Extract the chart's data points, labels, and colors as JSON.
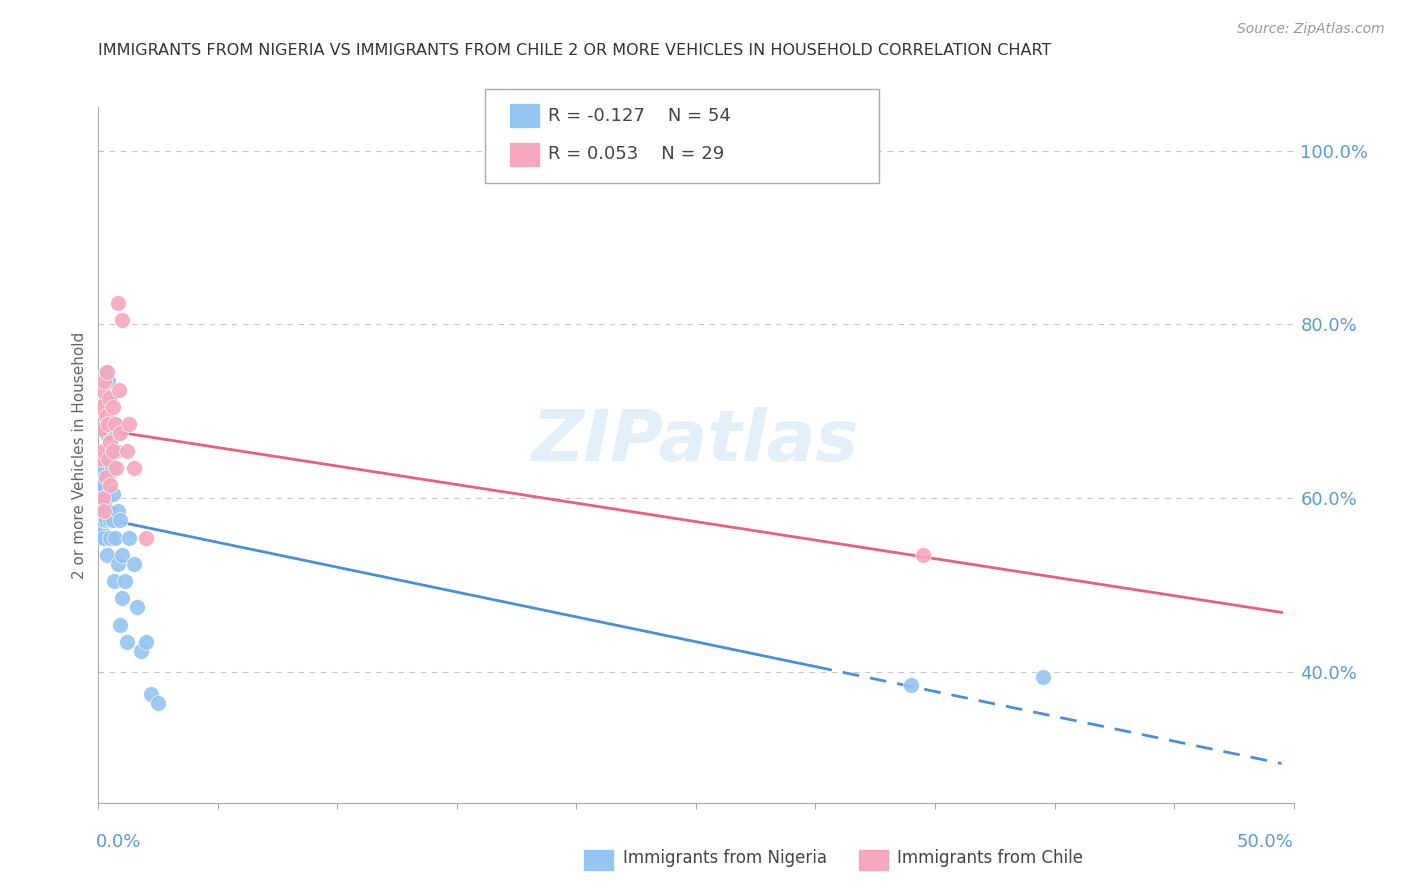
{
  "title": "IMMIGRANTS FROM NIGERIA VS IMMIGRANTS FROM CHILE 2 OR MORE VEHICLES IN HOUSEHOLD CORRELATION CHART",
  "source": "Source: ZipAtlas.com",
  "ylabel": "2 or more Vehicles in Household",
  "right_yticks": [
    0.4,
    0.6,
    0.8,
    1.0
  ],
  "right_yticklabels": [
    "40.0%",
    "60.0%",
    "80.0%",
    "100.0%"
  ],
  "nigeria_R": -0.127,
  "nigeria_N": 54,
  "chile_R": 0.053,
  "chile_N": 29,
  "nigeria_color": "#94c4f0",
  "chile_color": "#f5a8bc",
  "nigeria_line_color": "#4a90d9",
  "chile_line_color": "#e8607a",
  "watermark": "ZIPatlas",
  "background_color": "#ffffff",
  "grid_color": "#c8c8c8",
  "xmin": 0.0,
  "xmax": 0.5,
  "ymin": 0.25,
  "ymax": 1.05,
  "nigeria_x": [
    0.0008,
    0.0009,
    0.001,
    0.001,
    0.0012,
    0.0013,
    0.0014,
    0.0015,
    0.0015,
    0.0016,
    0.002,
    0.002,
    0.002,
    0.0022,
    0.0022,
    0.0025,
    0.0025,
    0.003,
    0.003,
    0.003,
    0.0032,
    0.0033,
    0.0035,
    0.004,
    0.004,
    0.004,
    0.0042,
    0.0045,
    0.005,
    0.005,
    0.0055,
    0.006,
    0.006,
    0.0065,
    0.007,
    0.007,
    0.0075,
    0.008,
    0.008,
    0.009,
    0.009,
    0.01,
    0.01,
    0.011,
    0.012,
    0.013,
    0.015,
    0.016,
    0.018,
    0.02,
    0.022,
    0.025,
    0.34,
    0.395
  ],
  "nigeria_y": [
    0.595,
    0.615,
    0.555,
    0.625,
    0.58,
    0.61,
    0.57,
    0.56,
    0.63,
    0.645,
    0.595,
    0.615,
    0.575,
    0.6,
    0.635,
    0.555,
    0.585,
    0.745,
    0.715,
    0.675,
    0.6,
    0.575,
    0.535,
    0.645,
    0.625,
    0.585,
    0.735,
    0.645,
    0.575,
    0.555,
    0.635,
    0.605,
    0.575,
    0.505,
    0.685,
    0.555,
    0.655,
    0.585,
    0.525,
    0.455,
    0.575,
    0.535,
    0.485,
    0.505,
    0.435,
    0.555,
    0.525,
    0.475,
    0.425,
    0.435,
    0.375,
    0.365,
    0.385,
    0.395
  ],
  "chile_x": [
    0.0008,
    0.001,
    0.0012,
    0.0015,
    0.002,
    0.002,
    0.0022,
    0.0025,
    0.003,
    0.003,
    0.0035,
    0.004,
    0.004,
    0.0045,
    0.005,
    0.005,
    0.006,
    0.006,
    0.007,
    0.0075,
    0.008,
    0.0085,
    0.009,
    0.01,
    0.012,
    0.013,
    0.015,
    0.02,
    0.345
  ],
  "chile_y": [
    0.705,
    0.68,
    0.645,
    0.725,
    0.655,
    0.6,
    0.585,
    0.735,
    0.695,
    0.625,
    0.745,
    0.685,
    0.645,
    0.715,
    0.665,
    0.615,
    0.705,
    0.655,
    0.685,
    0.635,
    0.825,
    0.725,
    0.675,
    0.805,
    0.655,
    0.685,
    0.635,
    0.555,
    0.535
  ]
}
